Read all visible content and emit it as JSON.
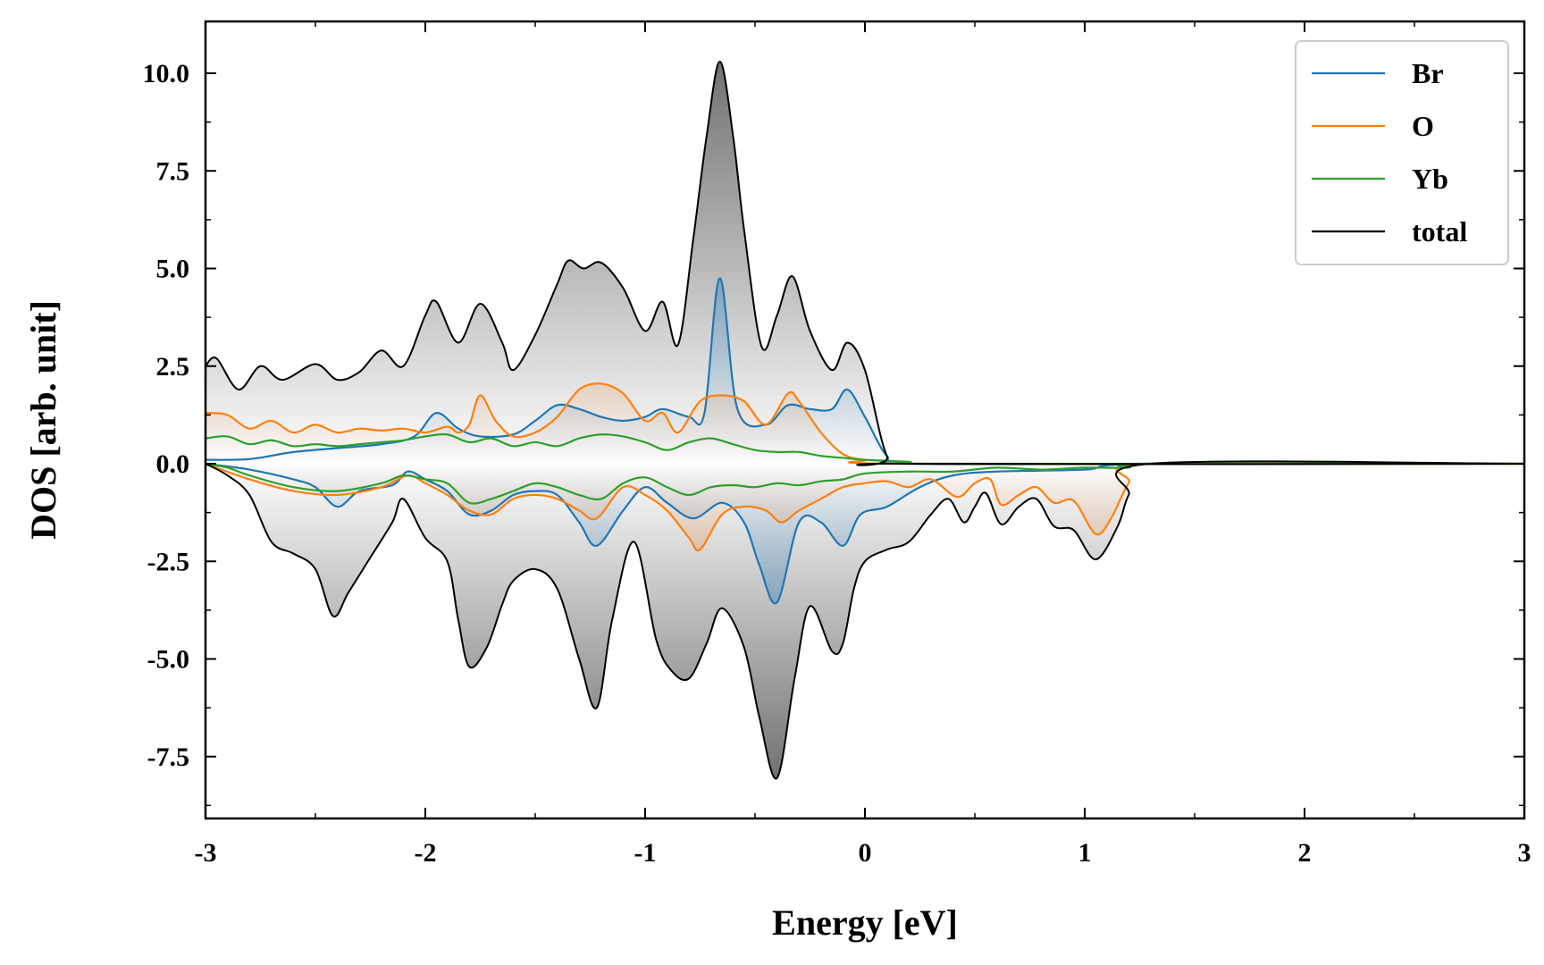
{
  "chart_data": {
    "type": "area",
    "xlabel": "Energy [eV]",
    "ylabel": "DOS [arb. unit]",
    "xlim": [
      -3,
      3
    ],
    "ylim": [
      -9,
      11.2
    ],
    "xticks": [
      -3,
      -2,
      -1,
      0,
      1,
      2,
      3
    ],
    "xtick_labels": [
      "-3",
      "-2",
      "-1",
      "0",
      "1",
      "2",
      "3"
    ],
    "yticks": [
      -7.5,
      -5.0,
      -2.5,
      0.0,
      2.5,
      5.0,
      7.5,
      10.0
    ],
    "ytick_labels": [
      "-7.5",
      "-5.0",
      "-2.5",
      "0.0",
      "2.5",
      "5.0",
      "7.5",
      "10.0"
    ],
    "legend_position": "top-right",
    "series": [
      {
        "name": "Br",
        "color": "#1f77b4",
        "spin_up": [
          [
            -3.0,
            0.1
          ],
          [
            -2.8,
            0.12
          ],
          [
            -2.6,
            0.3
          ],
          [
            -2.4,
            0.4
          ],
          [
            -2.2,
            0.5
          ],
          [
            -2.05,
            0.7
          ],
          [
            -1.95,
            1.3
          ],
          [
            -1.85,
            0.9
          ],
          [
            -1.75,
            0.7
          ],
          [
            -1.6,
            0.75
          ],
          [
            -1.5,
            1.1
          ],
          [
            -1.4,
            1.5
          ],
          [
            -1.3,
            1.4
          ],
          [
            -1.2,
            1.2
          ],
          [
            -1.1,
            1.1
          ],
          [
            -1.0,
            1.2
          ],
          [
            -0.92,
            1.4
          ],
          [
            -0.8,
            1.2
          ],
          [
            -0.73,
            1.3
          ],
          [
            -0.66,
            4.75
          ],
          [
            -0.58,
            1.4
          ],
          [
            -0.45,
            1.0
          ],
          [
            -0.35,
            1.5
          ],
          [
            -0.25,
            1.4
          ],
          [
            -0.15,
            1.4
          ],
          [
            -0.08,
            1.9
          ],
          [
            0.0,
            1.2
          ],
          [
            0.1,
            0.2
          ],
          [
            0.2,
            0.0
          ],
          [
            1.3,
            0.0
          ],
          [
            3.0,
            0.0
          ]
        ],
        "spin_down": [
          [
            -3.0,
            0.0
          ],
          [
            -2.8,
            -0.15
          ],
          [
            -2.6,
            -0.4
          ],
          [
            -2.5,
            -0.6
          ],
          [
            -2.4,
            -1.1
          ],
          [
            -2.3,
            -0.7
          ],
          [
            -2.15,
            -0.55
          ],
          [
            -2.08,
            -0.2
          ],
          [
            -2.0,
            -0.4
          ],
          [
            -1.9,
            -0.7
          ],
          [
            -1.8,
            -1.3
          ],
          [
            -1.7,
            -1.2
          ],
          [
            -1.6,
            -0.8
          ],
          [
            -1.5,
            -0.7
          ],
          [
            -1.4,
            -0.8
          ],
          [
            -1.3,
            -1.5
          ],
          [
            -1.22,
            -2.1
          ],
          [
            -1.1,
            -1.2
          ],
          [
            -1.0,
            -0.6
          ],
          [
            -0.9,
            -1.0
          ],
          [
            -0.78,
            -1.4
          ],
          [
            -0.65,
            -1.0
          ],
          [
            -0.55,
            -1.5
          ],
          [
            -0.48,
            -2.6
          ],
          [
            -0.4,
            -3.55
          ],
          [
            -0.3,
            -1.5
          ],
          [
            -0.2,
            -1.5
          ],
          [
            -0.1,
            -2.1
          ],
          [
            -0.02,
            -1.3
          ],
          [
            0.1,
            -1.1
          ],
          [
            0.25,
            -0.6
          ],
          [
            0.4,
            -0.3
          ],
          [
            0.6,
            -0.2
          ],
          [
            1.0,
            -0.15
          ],
          [
            1.3,
            0.0
          ],
          [
            3.0,
            0.0
          ]
        ]
      },
      {
        "name": "O",
        "color": "#ff7f0e",
        "spin_up": [
          [
            -3.0,
            1.3
          ],
          [
            -2.9,
            1.25
          ],
          [
            -2.8,
            0.9
          ],
          [
            -2.7,
            1.1
          ],
          [
            -2.6,
            0.8
          ],
          [
            -2.5,
            1.0
          ],
          [
            -2.4,
            0.8
          ],
          [
            -2.3,
            0.9
          ],
          [
            -2.2,
            0.85
          ],
          [
            -2.1,
            0.9
          ],
          [
            -2.0,
            0.8
          ],
          [
            -1.9,
            0.95
          ],
          [
            -1.85,
            0.8
          ],
          [
            -1.8,
            1.0
          ],
          [
            -1.75,
            1.75
          ],
          [
            -1.68,
            1.1
          ],
          [
            -1.6,
            0.7
          ],
          [
            -1.5,
            0.8
          ],
          [
            -1.4,
            1.2
          ],
          [
            -1.3,
            1.9
          ],
          [
            -1.2,
            2.05
          ],
          [
            -1.1,
            1.8
          ],
          [
            -1.0,
            1.1
          ],
          [
            -0.92,
            1.3
          ],
          [
            -0.85,
            0.8
          ],
          [
            -0.75,
            1.6
          ],
          [
            -0.65,
            1.75
          ],
          [
            -0.55,
            1.6
          ],
          [
            -0.45,
            1.0
          ],
          [
            -0.35,
            1.8
          ],
          [
            -0.3,
            1.6
          ],
          [
            -0.2,
            0.8
          ],
          [
            -0.1,
            0.25
          ],
          [
            0.0,
            0.1
          ],
          [
            0.2,
            0.0
          ],
          [
            3.0,
            0.0
          ]
        ],
        "spin_down": [
          [
            -3.0,
            0.0
          ],
          [
            -2.8,
            -0.4
          ],
          [
            -2.6,
            -0.7
          ],
          [
            -2.4,
            -0.8
          ],
          [
            -2.2,
            -0.6
          ],
          [
            -2.08,
            -0.3
          ],
          [
            -2.0,
            -0.5
          ],
          [
            -1.9,
            -0.8
          ],
          [
            -1.8,
            -1.2
          ],
          [
            -1.7,
            -1.3
          ],
          [
            -1.6,
            -0.9
          ],
          [
            -1.5,
            -0.8
          ],
          [
            -1.4,
            -0.9
          ],
          [
            -1.3,
            -1.2
          ],
          [
            -1.22,
            -1.4
          ],
          [
            -1.1,
            -0.6
          ],
          [
            -1.0,
            -0.8
          ],
          [
            -0.9,
            -1.2
          ],
          [
            -0.8,
            -1.9
          ],
          [
            -0.75,
            -2.2
          ],
          [
            -0.65,
            -1.3
          ],
          [
            -0.55,
            -1.1
          ],
          [
            -0.45,
            -1.2
          ],
          [
            -0.38,
            -1.5
          ],
          [
            -0.3,
            -1.2
          ],
          [
            -0.2,
            -0.9
          ],
          [
            -0.1,
            -0.6
          ],
          [
            0.0,
            -0.5
          ],
          [
            0.1,
            -0.45
          ],
          [
            0.2,
            -0.6
          ],
          [
            0.3,
            -0.4
          ],
          [
            0.42,
            -0.85
          ],
          [
            0.5,
            -0.5
          ],
          [
            0.57,
            -0.4
          ],
          [
            0.62,
            -1.05
          ],
          [
            0.7,
            -0.8
          ],
          [
            0.78,
            -0.6
          ],
          [
            0.86,
            -1.0
          ],
          [
            0.95,
            -0.95
          ],
          [
            1.05,
            -1.8
          ],
          [
            1.12,
            -1.4
          ],
          [
            1.2,
            -0.5
          ],
          [
            1.3,
            0.0
          ],
          [
            3.0,
            0.0
          ]
        ]
      },
      {
        "name": "Yb",
        "color": "#2ca02c",
        "spin_up": [
          [
            -3.0,
            0.65
          ],
          [
            -2.9,
            0.7
          ],
          [
            -2.8,
            0.5
          ],
          [
            -2.7,
            0.6
          ],
          [
            -2.6,
            0.45
          ],
          [
            -2.5,
            0.5
          ],
          [
            -2.4,
            0.45
          ],
          [
            -2.3,
            0.5
          ],
          [
            -2.2,
            0.55
          ],
          [
            -2.1,
            0.6
          ],
          [
            -2.0,
            0.7
          ],
          [
            -1.9,
            0.75
          ],
          [
            -1.8,
            0.55
          ],
          [
            -1.7,
            0.65
          ],
          [
            -1.6,
            0.45
          ],
          [
            -1.5,
            0.55
          ],
          [
            -1.4,
            0.45
          ],
          [
            -1.3,
            0.65
          ],
          [
            -1.2,
            0.75
          ],
          [
            -1.1,
            0.7
          ],
          [
            -1.0,
            0.55
          ],
          [
            -0.9,
            0.35
          ],
          [
            -0.8,
            0.55
          ],
          [
            -0.7,
            0.65
          ],
          [
            -0.6,
            0.5
          ],
          [
            -0.5,
            0.35
          ],
          [
            -0.4,
            0.3
          ],
          [
            -0.3,
            0.3
          ],
          [
            -0.2,
            0.2
          ],
          [
            -0.1,
            0.15
          ],
          [
            0.0,
            0.1
          ],
          [
            0.2,
            0.05
          ],
          [
            0.4,
            0.0
          ],
          [
            3.0,
            0.0
          ]
        ],
        "spin_down": [
          [
            -3.0,
            0.0
          ],
          [
            -2.9,
            -0.1
          ],
          [
            -2.8,
            -0.3
          ],
          [
            -2.6,
            -0.6
          ],
          [
            -2.4,
            -0.7
          ],
          [
            -2.2,
            -0.5
          ],
          [
            -2.1,
            -0.3
          ],
          [
            -2.0,
            -0.4
          ],
          [
            -1.9,
            -0.5
          ],
          [
            -1.8,
            -1.0
          ],
          [
            -1.7,
            -0.9
          ],
          [
            -1.6,
            -0.7
          ],
          [
            -1.5,
            -0.5
          ],
          [
            -1.4,
            -0.6
          ],
          [
            -1.3,
            -0.8
          ],
          [
            -1.2,
            -0.9
          ],
          [
            -1.1,
            -0.5
          ],
          [
            -1.0,
            -0.35
          ],
          [
            -0.9,
            -0.6
          ],
          [
            -0.8,
            -0.8
          ],
          [
            -0.7,
            -0.6
          ],
          [
            -0.6,
            -0.55
          ],
          [
            -0.5,
            -0.6
          ],
          [
            -0.4,
            -0.5
          ],
          [
            -0.3,
            -0.55
          ],
          [
            -0.2,
            -0.45
          ],
          [
            -0.1,
            -0.4
          ],
          [
            0.0,
            -0.25
          ],
          [
            0.2,
            -0.2
          ],
          [
            0.4,
            -0.2
          ],
          [
            0.6,
            -0.1
          ],
          [
            0.8,
            -0.15
          ],
          [
            1.0,
            -0.1
          ],
          [
            1.2,
            -0.1
          ],
          [
            1.3,
            0.0
          ],
          [
            3.0,
            0.0
          ]
        ]
      },
      {
        "name": "total",
        "color": "#000000",
        "spin_up": [
          [
            -3.0,
            2.5
          ],
          [
            -2.95,
            2.7
          ],
          [
            -2.85,
            1.9
          ],
          [
            -2.75,
            2.5
          ],
          [
            -2.65,
            2.15
          ],
          [
            -2.5,
            2.55
          ],
          [
            -2.4,
            2.15
          ],
          [
            -2.3,
            2.35
          ],
          [
            -2.2,
            2.9
          ],
          [
            -2.1,
            2.5
          ],
          [
            -2.0,
            3.8
          ],
          [
            -1.95,
            4.15
          ],
          [
            -1.85,
            3.1
          ],
          [
            -1.75,
            4.1
          ],
          [
            -1.65,
            3.1
          ],
          [
            -1.6,
            2.4
          ],
          [
            -1.5,
            3.3
          ],
          [
            -1.4,
            4.6
          ],
          [
            -1.35,
            5.2
          ],
          [
            -1.28,
            5.0
          ],
          [
            -1.2,
            5.15
          ],
          [
            -1.1,
            4.5
          ],
          [
            -1.0,
            3.4
          ],
          [
            -0.92,
            4.15
          ],
          [
            -0.85,
            3.05
          ],
          [
            -0.78,
            5.8
          ],
          [
            -0.72,
            8.4
          ],
          [
            -0.66,
            10.3
          ],
          [
            -0.6,
            8.4
          ],
          [
            -0.55,
            6.0
          ],
          [
            -0.47,
            3.0
          ],
          [
            -0.4,
            3.8
          ],
          [
            -0.33,
            4.8
          ],
          [
            -0.25,
            3.4
          ],
          [
            -0.15,
            2.4
          ],
          [
            -0.08,
            3.1
          ],
          [
            0.0,
            2.4
          ],
          [
            0.1,
            0.2
          ],
          [
            0.2,
            0.0
          ],
          [
            3.0,
            0.0
          ]
        ],
        "spin_down": [
          [
            -3.0,
            0.0
          ],
          [
            -2.9,
            -0.3
          ],
          [
            -2.8,
            -0.8
          ],
          [
            -2.7,
            -2.0
          ],
          [
            -2.6,
            -2.3
          ],
          [
            -2.5,
            -2.7
          ],
          [
            -2.42,
            -3.9
          ],
          [
            -2.35,
            -3.3
          ],
          [
            -2.25,
            -2.4
          ],
          [
            -2.15,
            -1.5
          ],
          [
            -2.1,
            -0.9
          ],
          [
            -2.0,
            -1.9
          ],
          [
            -1.9,
            -2.5
          ],
          [
            -1.85,
            -4.0
          ],
          [
            -1.8,
            -5.2
          ],
          [
            -1.72,
            -4.7
          ],
          [
            -1.65,
            -3.6
          ],
          [
            -1.6,
            -3.0
          ],
          [
            -1.5,
            -2.7
          ],
          [
            -1.4,
            -3.2
          ],
          [
            -1.3,
            -5.0
          ],
          [
            -1.22,
            -6.25
          ],
          [
            -1.15,
            -4.0
          ],
          [
            -1.05,
            -2.0
          ],
          [
            -0.95,
            -4.5
          ],
          [
            -0.88,
            -5.3
          ],
          [
            -0.8,
            -5.5
          ],
          [
            -0.72,
            -4.6
          ],
          [
            -0.65,
            -3.7
          ],
          [
            -0.55,
            -4.7
          ],
          [
            -0.48,
            -6.5
          ],
          [
            -0.4,
            -8.05
          ],
          [
            -0.32,
            -5.5
          ],
          [
            -0.25,
            -3.65
          ],
          [
            -0.15,
            -4.8
          ],
          [
            -0.1,
            -4.6
          ],
          [
            -0.05,
            -3.2
          ],
          [
            0.0,
            -2.5
          ],
          [
            0.1,
            -2.2
          ],
          [
            0.2,
            -2.0
          ],
          [
            0.3,
            -1.3
          ],
          [
            0.38,
            -0.9
          ],
          [
            0.45,
            -1.5
          ],
          [
            0.5,
            -1.1
          ],
          [
            0.55,
            -0.75
          ],
          [
            0.62,
            -1.55
          ],
          [
            0.7,
            -1.1
          ],
          [
            0.78,
            -0.9
          ],
          [
            0.86,
            -1.6
          ],
          [
            0.95,
            -1.7
          ],
          [
            1.05,
            -2.45
          ],
          [
            1.15,
            -1.6
          ],
          [
            1.2,
            -0.8
          ],
          [
            1.3,
            0.0
          ],
          [
            3.0,
            0.0
          ]
        ]
      }
    ]
  }
}
